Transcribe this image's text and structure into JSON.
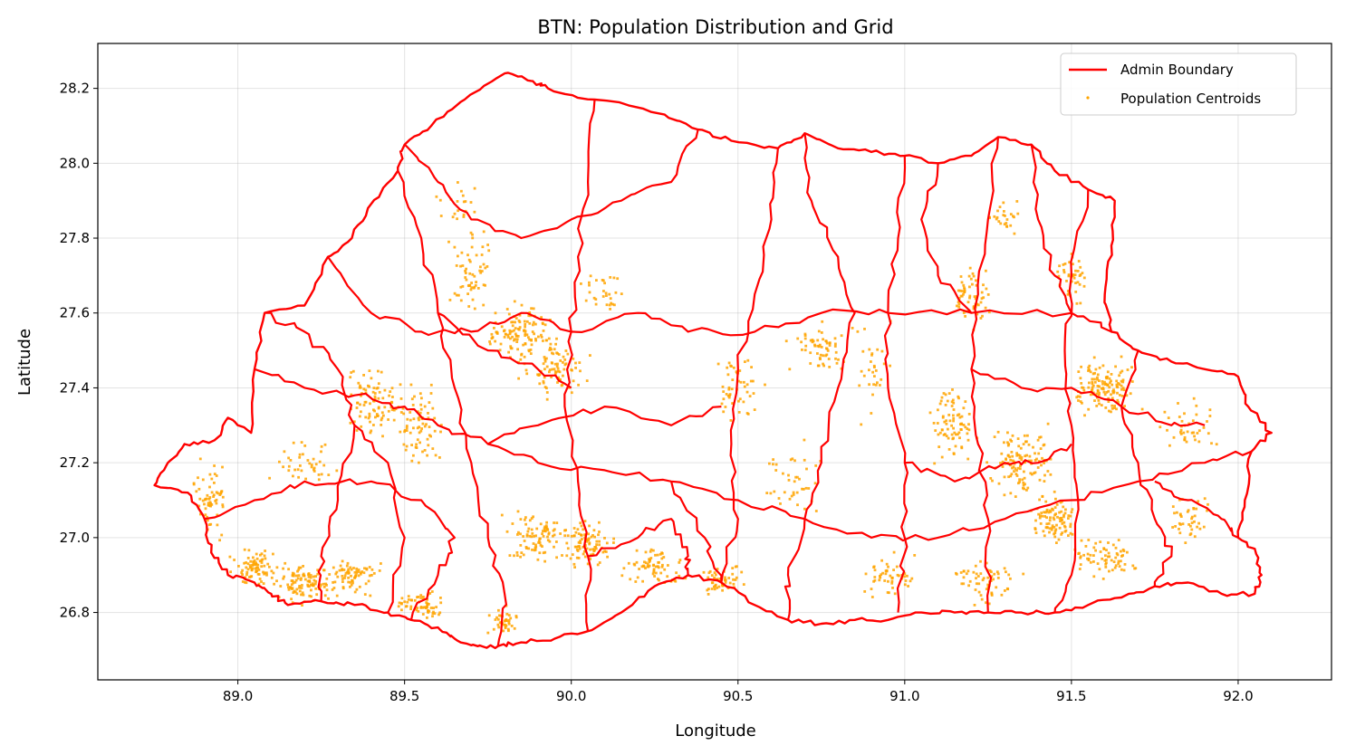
{
  "chart_data": {
    "type": "map",
    "title": "BTN: Population Distribution and Grid",
    "xlabel": "Longitude",
    "ylabel": "Latitude",
    "xlim": [
      88.58,
      92.28
    ],
    "ylim": [
      26.62,
      28.32
    ],
    "xticks": [
      89.0,
      89.5,
      90.0,
      90.5,
      91.0,
      91.5,
      92.0
    ],
    "xtick_labels": [
      "89.0",
      "89.5",
      "90.0",
      "90.5",
      "91.0",
      "91.5",
      "92.0"
    ],
    "yticks": [
      26.8,
      27.0,
      27.2,
      27.4,
      27.6,
      27.8,
      28.0,
      28.2
    ],
    "ytick_labels": [
      "26.8",
      "27.0",
      "27.2",
      "27.4",
      "27.6",
      "27.8",
      "28.0",
      "28.2"
    ],
    "grid": true,
    "legend_position": "upper-right",
    "series": [
      {
        "name": "Admin Boundary",
        "kind": "line",
        "color": "#ff0000"
      },
      {
        "name": "Population Centroids",
        "kind": "points",
        "color": "#ffa500"
      }
    ],
    "outline": [
      [
        88.75,
        27.14
      ],
      [
        88.79,
        27.2
      ],
      [
        88.84,
        27.25
      ],
      [
        88.93,
        27.26
      ],
      [
        88.97,
        27.32
      ],
      [
        89.04,
        27.28
      ],
      [
        89.05,
        27.45
      ],
      [
        89.08,
        27.6
      ],
      [
        89.2,
        27.62
      ],
      [
        89.27,
        27.75
      ],
      [
        89.33,
        27.79
      ],
      [
        89.39,
        27.88
      ],
      [
        89.48,
        27.98
      ],
      [
        89.5,
        28.05
      ],
      [
        89.58,
        28.1
      ],
      [
        89.68,
        28.17
      ],
      [
        89.8,
        28.24
      ],
      [
        89.88,
        28.22
      ],
      [
        89.93,
        28.2
      ],
      [
        90.07,
        28.17
      ],
      [
        90.28,
        28.13
      ],
      [
        90.38,
        28.09
      ],
      [
        90.48,
        28.06
      ],
      [
        90.62,
        28.04
      ],
      [
        90.7,
        28.08
      ],
      [
        90.8,
        28.04
      ],
      [
        90.9,
        28.03
      ],
      [
        91.0,
        28.02
      ],
      [
        91.1,
        28.0
      ],
      [
        91.2,
        28.02
      ],
      [
        91.28,
        28.07
      ],
      [
        91.38,
        28.05
      ],
      [
        91.45,
        27.98
      ],
      [
        91.55,
        27.93
      ],
      [
        91.63,
        27.9
      ],
      [
        91.62,
        27.78
      ],
      [
        91.6,
        27.65
      ],
      [
        91.62,
        27.55
      ],
      [
        91.7,
        27.5
      ],
      [
        91.8,
        27.47
      ],
      [
        91.9,
        27.45
      ],
      [
        92.0,
        27.43
      ],
      [
        92.03,
        27.35
      ],
      [
        92.1,
        27.28
      ],
      [
        92.04,
        27.23
      ],
      [
        92.02,
        27.1
      ],
      [
        92.0,
        27.0
      ],
      [
        92.05,
        26.97
      ],
      [
        92.07,
        26.9
      ],
      [
        92.05,
        26.85
      ],
      [
        91.95,
        26.85
      ],
      [
        91.85,
        26.88
      ],
      [
        91.75,
        26.87
      ],
      [
        91.65,
        26.84
      ],
      [
        91.55,
        26.82
      ],
      [
        91.45,
        26.8
      ],
      [
        91.35,
        26.8
      ],
      [
        91.25,
        26.8
      ],
      [
        91.15,
        26.8
      ],
      [
        91.05,
        26.8
      ],
      [
        90.95,
        26.78
      ],
      [
        90.85,
        26.78
      ],
      [
        90.75,
        26.77
      ],
      [
        90.65,
        26.78
      ],
      [
        90.55,
        26.82
      ],
      [
        90.45,
        26.88
      ],
      [
        90.35,
        26.9
      ],
      [
        90.25,
        26.87
      ],
      [
        90.15,
        26.8
      ],
      [
        90.05,
        26.75
      ],
      [
        89.95,
        26.73
      ],
      [
        89.85,
        26.72
      ],
      [
        89.78,
        26.71
      ],
      [
        89.72,
        26.71
      ],
      [
        89.65,
        26.73
      ],
      [
        89.6,
        26.76
      ],
      [
        89.52,
        26.78
      ],
      [
        89.45,
        26.8
      ],
      [
        89.35,
        26.82
      ],
      [
        89.25,
        26.83
      ],
      [
        89.15,
        26.82
      ],
      [
        89.1,
        26.85
      ],
      [
        89.05,
        26.88
      ],
      [
        88.97,
        26.9
      ],
      [
        88.92,
        26.96
      ],
      [
        88.9,
        27.05
      ],
      [
        88.85,
        27.12
      ],
      [
        88.75,
        27.14
      ]
    ],
    "internal_boundaries": [
      [
        [
          89.05,
          27.45
        ],
        [
          89.2,
          27.4
        ],
        [
          89.35,
          27.38
        ],
        [
          89.5,
          27.35
        ],
        [
          89.6,
          27.3
        ],
        [
          89.75,
          27.25
        ],
        [
          89.9,
          27.2
        ],
        [
          90.1,
          27.18
        ],
        [
          90.3,
          27.15
        ],
        [
          90.5,
          27.1
        ],
        [
          90.7,
          27.05
        ],
        [
          90.9,
          27.0
        ],
        [
          91.1,
          27.0
        ],
        [
          91.3,
          27.05
        ],
        [
          91.5,
          27.1
        ],
        [
          91.7,
          27.15
        ],
        [
          91.9,
          27.2
        ],
        [
          92.04,
          27.23
        ]
      ],
      [
        [
          89.48,
          27.98
        ],
        [
          89.55,
          27.8
        ],
        [
          89.6,
          27.6
        ],
        [
          89.65,
          27.4
        ],
        [
          89.7,
          27.2
        ],
        [
          89.75,
          27.0
        ],
        [
          89.8,
          26.85
        ],
        [
          89.78,
          26.71
        ]
      ],
      [
        [
          90.07,
          28.17
        ],
        [
          90.05,
          27.95
        ],
        [
          90.02,
          27.75
        ],
        [
          90.0,
          27.55
        ],
        [
          89.98,
          27.35
        ],
        [
          90.02,
          27.15
        ],
        [
          90.05,
          26.95
        ],
        [
          90.05,
          26.75
        ]
      ],
      [
        [
          90.62,
          28.04
        ],
        [
          90.6,
          27.85
        ],
        [
          90.55,
          27.65
        ],
        [
          90.5,
          27.45
        ],
        [
          90.48,
          27.25
        ],
        [
          90.5,
          27.05
        ],
        [
          90.45,
          26.88
        ]
      ],
      [
        [
          91.0,
          28.02
        ],
        [
          90.98,
          27.8
        ],
        [
          90.95,
          27.6
        ],
        [
          90.95,
          27.4
        ],
        [
          91.0,
          27.2
        ],
        [
          91.0,
          27.0
        ],
        [
          90.98,
          26.8
        ]
      ],
      [
        [
          91.28,
          28.07
        ],
        [
          91.25,
          27.85
        ],
        [
          91.22,
          27.65
        ],
        [
          91.2,
          27.45
        ],
        [
          91.22,
          27.25
        ],
        [
          91.25,
          27.05
        ],
        [
          91.25,
          26.8
        ]
      ],
      [
        [
          91.55,
          27.93
        ],
        [
          91.5,
          27.7
        ],
        [
          91.48,
          27.5
        ],
        [
          91.5,
          27.3
        ],
        [
          91.52,
          27.1
        ],
        [
          91.5,
          26.9
        ],
        [
          91.45,
          26.8
        ]
      ],
      [
        [
          89.27,
          27.75
        ],
        [
          89.4,
          27.6
        ],
        [
          89.55,
          27.55
        ],
        [
          89.7,
          27.55
        ],
        [
          89.85,
          27.6
        ],
        [
          90.0,
          27.55
        ],
        [
          90.2,
          27.6
        ],
        [
          90.35,
          27.55
        ],
        [
          90.55,
          27.55
        ],
        [
          90.75,
          27.6
        ],
        [
          90.95,
          27.6
        ],
        [
          91.2,
          27.6
        ],
        [
          91.5,
          27.6
        ],
        [
          91.62,
          27.55
        ]
      ],
      [
        [
          89.08,
          27.6
        ],
        [
          89.2,
          27.55
        ],
        [
          89.3,
          27.45
        ],
        [
          89.35,
          27.3
        ],
        [
          89.3,
          27.1
        ],
        [
          89.25,
          26.95
        ],
        [
          89.25,
          26.83
        ]
      ],
      [
        [
          89.5,
          28.05
        ],
        [
          89.6,
          27.95
        ],
        [
          89.7,
          27.85
        ],
        [
          89.85,
          27.8
        ],
        [
          90.0,
          27.85
        ],
        [
          90.15,
          27.9
        ],
        [
          90.3,
          27.95
        ],
        [
          90.38,
          28.09
        ]
      ],
      [
        [
          88.9,
          27.05
        ],
        [
          89.05,
          27.1
        ],
        [
          89.2,
          27.15
        ],
        [
          89.4,
          27.15
        ],
        [
          89.55,
          27.1
        ],
        [
          89.65,
          27.0
        ],
        [
          89.6,
          26.9
        ],
        [
          89.52,
          26.78
        ]
      ],
      [
        [
          90.05,
          26.95
        ],
        [
          90.2,
          27.0
        ],
        [
          90.3,
          27.05
        ],
        [
          90.35,
          26.95
        ],
        [
          90.35,
          26.9
        ]
      ],
      [
        [
          91.7,
          27.5
        ],
        [
          91.65,
          27.35
        ],
        [
          91.7,
          27.2
        ],
        [
          91.75,
          27.05
        ],
        [
          91.8,
          26.95
        ],
        [
          91.75,
          26.87
        ]
      ],
      [
        [
          91.75,
          27.15
        ],
        [
          91.85,
          27.1
        ],
        [
          91.95,
          27.05
        ],
        [
          92.0,
          27.0
        ]
      ],
      [
        [
          90.7,
          28.08
        ],
        [
          90.72,
          27.9
        ],
        [
          90.8,
          27.75
        ],
        [
          90.85,
          27.6
        ],
        [
          90.8,
          27.4
        ],
        [
          90.75,
          27.2
        ],
        [
          90.7,
          27.05
        ],
        [
          90.65,
          26.9
        ],
        [
          90.65,
          26.78
        ]
      ],
      [
        [
          89.75,
          27.25
        ],
        [
          89.9,
          27.3
        ],
        [
          90.1,
          27.35
        ],
        [
          90.3,
          27.3
        ],
        [
          90.45,
          27.35
        ]
      ],
      [
        [
          89.6,
          27.6
        ],
        [
          89.75,
          27.5
        ],
        [
          89.9,
          27.45
        ],
        [
          90.0,
          27.4
        ]
      ],
      [
        [
          91.2,
          27.45
        ],
        [
          91.35,
          27.4
        ],
        [
          91.5,
          27.4
        ],
        [
          91.65,
          27.35
        ],
        [
          91.8,
          27.3
        ],
        [
          91.9,
          27.3
        ]
      ],
      [
        [
          91.0,
          27.2
        ],
        [
          91.15,
          27.15
        ],
        [
          91.3,
          27.2
        ],
        [
          91.4,
          27.2
        ],
        [
          91.5,
          27.25
        ]
      ],
      [
        [
          90.3,
          27.15
        ],
        [
          90.4,
          27.0
        ],
        [
          90.45,
          26.88
        ]
      ],
      [
        [
          89.35,
          27.3
        ],
        [
          89.45,
          27.2
        ],
        [
          89.5,
          27.0
        ],
        [
          89.45,
          26.8
        ]
      ],
      [
        [
          91.1,
          28.0
        ],
        [
          91.05,
          27.85
        ],
        [
          91.1,
          27.7
        ],
        [
          91.2,
          27.6
        ]
      ],
      [
        [
          91.38,
          28.05
        ],
        [
          91.4,
          27.85
        ],
        [
          91.45,
          27.7
        ],
        [
          91.5,
          27.6
        ]
      ]
    ],
    "population_clusters": [
      {
        "center": [
          89.05,
          26.92
        ],
        "spread": [
          0.06,
          0.04
        ],
        "count": 80
      },
      {
        "center": [
          89.2,
          26.88
        ],
        "spread": [
          0.08,
          0.04
        ],
        "count": 110
      },
      {
        "center": [
          89.35,
          26.9
        ],
        "spread": [
          0.06,
          0.04
        ],
        "count": 70
      },
      {
        "center": [
          89.55,
          26.82
        ],
        "spread": [
          0.06,
          0.03
        ],
        "count": 60
      },
      {
        "center": [
          88.92,
          27.1
        ],
        "spread": [
          0.04,
          0.08
        ],
        "count": 60
      },
      {
        "center": [
          89.4,
          27.35
        ],
        "spread": [
          0.08,
          0.08
        ],
        "count": 90
      },
      {
        "center": [
          89.55,
          27.3
        ],
        "spread": [
          0.06,
          0.1
        ],
        "count": 70
      },
      {
        "center": [
          89.7,
          27.7
        ],
        "spread": [
          0.05,
          0.1
        ],
        "count": 60
      },
      {
        "center": [
          89.85,
          27.55
        ],
        "spread": [
          0.08,
          0.06
        ],
        "count": 120
      },
      {
        "center": [
          89.95,
          27.45
        ],
        "spread": [
          0.08,
          0.06
        ],
        "count": 80
      },
      {
        "center": [
          89.9,
          27.0
        ],
        "spread": [
          0.08,
          0.06
        ],
        "count": 90
      },
      {
        "center": [
          90.05,
          26.98
        ],
        "spread": [
          0.06,
          0.05
        ],
        "count": 90
      },
      {
        "center": [
          89.8,
          26.78
        ],
        "spread": [
          0.04,
          0.03
        ],
        "count": 40
      },
      {
        "center": [
          90.25,
          26.92
        ],
        "spread": [
          0.08,
          0.04
        ],
        "count": 70
      },
      {
        "center": [
          90.45,
          26.9
        ],
        "spread": [
          0.05,
          0.04
        ],
        "count": 50
      },
      {
        "center": [
          90.5,
          27.4
        ],
        "spread": [
          0.06,
          0.08
        ],
        "count": 50
      },
      {
        "center": [
          90.75,
          27.5
        ],
        "spread": [
          0.08,
          0.06
        ],
        "count": 60
      },
      {
        "center": [
          90.65,
          27.15
        ],
        "spread": [
          0.08,
          0.08
        ],
        "count": 40
      },
      {
        "center": [
          90.95,
          26.9
        ],
        "spread": [
          0.06,
          0.05
        ],
        "count": 50
      },
      {
        "center": [
          91.15,
          27.3
        ],
        "spread": [
          0.06,
          0.08
        ],
        "count": 80
      },
      {
        "center": [
          91.25,
          26.88
        ],
        "spread": [
          0.08,
          0.05
        ],
        "count": 60
      },
      {
        "center": [
          91.35,
          27.2
        ],
        "spread": [
          0.08,
          0.08
        ],
        "count": 120
      },
      {
        "center": [
          91.45,
          27.05
        ],
        "spread": [
          0.06,
          0.06
        ],
        "count": 90
      },
      {
        "center": [
          91.6,
          27.4
        ],
        "spread": [
          0.08,
          0.06
        ],
        "count": 130
      },
      {
        "center": [
          91.6,
          26.95
        ],
        "spread": [
          0.08,
          0.05
        ],
        "count": 70
      },
      {
        "center": [
          91.2,
          27.65
        ],
        "spread": [
          0.05,
          0.08
        ],
        "count": 60
      },
      {
        "center": [
          91.5,
          27.7
        ],
        "spread": [
          0.04,
          0.06
        ],
        "count": 40
      },
      {
        "center": [
          91.3,
          27.85
        ],
        "spread": [
          0.05,
          0.05
        ],
        "count": 25
      },
      {
        "center": [
          91.85,
          27.3
        ],
        "spread": [
          0.06,
          0.05
        ],
        "count": 40
      },
      {
        "center": [
          91.85,
          27.05
        ],
        "spread": [
          0.06,
          0.06
        ],
        "count": 40
      },
      {
        "center": [
          89.65,
          27.9
        ],
        "spread": [
          0.05,
          0.05
        ],
        "count": 20
      },
      {
        "center": [
          90.1,
          27.65
        ],
        "spread": [
          0.06,
          0.05
        ],
        "count": 30
      },
      {
        "center": [
          90.9,
          27.45
        ],
        "spread": [
          0.05,
          0.1
        ],
        "count": 30
      },
      {
        "center": [
          89.2,
          27.2
        ],
        "spread": [
          0.08,
          0.06
        ],
        "count": 40
      }
    ]
  }
}
